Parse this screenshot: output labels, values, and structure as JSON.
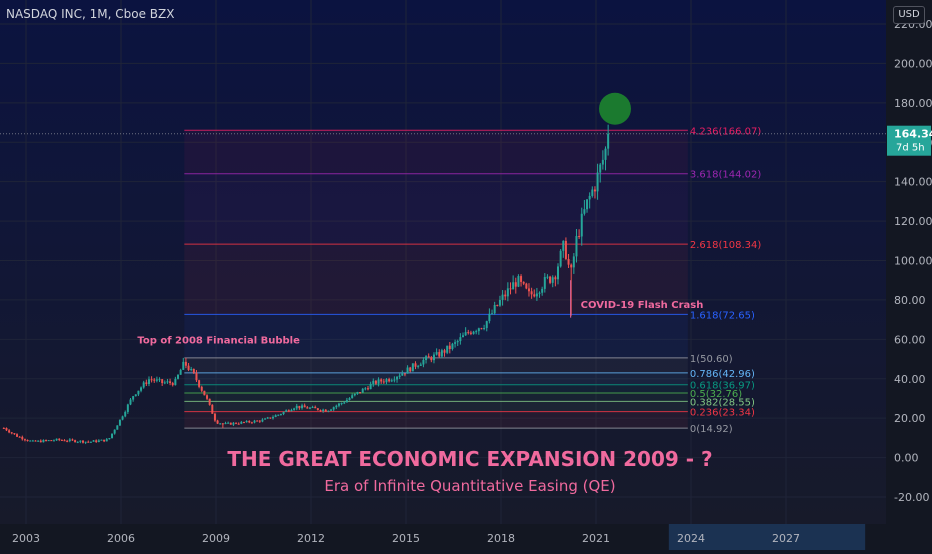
{
  "header": {
    "symbol": "NASDAQ INC, 1M, Cboe BZX",
    "currency": "USD"
  },
  "price_tag": {
    "price": "164.34",
    "countdown": "7d 5h"
  },
  "colors": {
    "background": "#131722",
    "up": "#26a69a",
    "down": "#ef5350",
    "title": "#f06a9e",
    "subtitle": "#f06a9e",
    "marker": "#1b7a2f"
  },
  "chart_data": {
    "type": "candlestick",
    "title": "THE GREAT ECONOMIC EXPANSION 2009 - ?",
    "subtitle": "Era of Infinite Quantitative Easing (QE)",
    "xlabel": "",
    "ylabel": "",
    "ylim": [
      -30,
      240
    ],
    "xlim": [
      2002.3,
      2029.5
    ],
    "x_ticks": [
      "2003",
      "2006",
      "2009",
      "2012",
      "2015",
      "2018",
      "2021",
      "2024",
      "2027"
    ],
    "y_ticks": [
      "-20.00",
      "0.00",
      "20.00",
      "40.00",
      "60.00",
      "80.00",
      "100.00",
      "120.00",
      "140.00",
      "160.00",
      "180.00",
      "200.00",
      "220.00"
    ],
    "last_price": 164.34,
    "price_path": [
      [
        2002.3,
        15
      ],
      [
        2002.7,
        11
      ],
      [
        2003.2,
        8
      ],
      [
        2004.0,
        9
      ],
      [
        2005.0,
        8
      ],
      [
        2005.6,
        9
      ],
      [
        2006.0,
        20
      ],
      [
        2006.4,
        32
      ],
      [
        2006.9,
        40
      ],
      [
        2007.3,
        38
      ],
      [
        2007.7,
        38
      ],
      [
        2007.9,
        45
      ],
      [
        2008.0,
        48
      ],
      [
        2008.3,
        42
      ],
      [
        2008.7,
        30
      ],
      [
        2009.0,
        18
      ],
      [
        2009.3,
        17
      ],
      [
        2010.0,
        18
      ],
      [
        2010.5,
        19
      ],
      [
        2011.0,
        22
      ],
      [
        2011.5,
        26
      ],
      [
        2012.0,
        25
      ],
      [
        2012.5,
        24
      ],
      [
        2013.0,
        28
      ],
      [
        2013.5,
        33
      ],
      [
        2014.0,
        38
      ],
      [
        2014.5,
        40
      ],
      [
        2015.0,
        44
      ],
      [
        2015.5,
        49
      ],
      [
        2016.0,
        52
      ],
      [
        2016.5,
        57
      ],
      [
        2017.0,
        64
      ],
      [
        2017.5,
        68
      ],
      [
        2018.0,
        80
      ],
      [
        2018.5,
        90
      ],
      [
        2018.9,
        82
      ],
      [
        2019.3,
        88
      ],
      [
        2019.7,
        93
      ],
      [
        2020.0,
        108
      ],
      [
        2020.2,
        92
      ],
      [
        2020.4,
        112
      ],
      [
        2020.7,
        128
      ],
      [
        2021.0,
        140
      ],
      [
        2021.2,
        150
      ],
      [
        2021.4,
        162
      ]
    ],
    "fib_levels": [
      {
        "ratio": "0",
        "label": "0(14.92)",
        "value": 14.92,
        "color": "#9598a1"
      },
      {
        "ratio": "0.236",
        "label": "0.236(23.34)",
        "value": 23.34,
        "color": "#f23645"
      },
      {
        "ratio": "0.382",
        "label": "0.382(28.55)",
        "value": 28.55,
        "color": "#81c784"
      },
      {
        "ratio": "0.5",
        "label": "0.5(32.76)",
        "value": 32.76,
        "color": "#4caf50"
      },
      {
        "ratio": "0.618",
        "label": "0.618(36.97)",
        "value": 36.97,
        "color": "#089981"
      },
      {
        "ratio": "0.786",
        "label": "0.786(42.96)",
        "value": 42.96,
        "color": "#64b5f6"
      },
      {
        "ratio": "1",
        "label": "1(50.60)",
        "value": 50.6,
        "color": "#9598a1"
      },
      {
        "ratio": "1.618",
        "label": "1.618(72.65)",
        "value": 72.65,
        "color": "#2962ff"
      },
      {
        "ratio": "2.618",
        "label": "2.618(108.34)",
        "value": 108.34,
        "color": "#f23645"
      },
      {
        "ratio": "3.618",
        "label": "3.618(144.02)",
        "value": 144.02,
        "color": "#9c27b0"
      },
      {
        "ratio": "4.236",
        "label": "4.236(166.07)",
        "value": 166.07,
        "color": "#e91e63"
      }
    ],
    "annotations": [
      {
        "text": "Top of 2008 Financial Bubble",
        "x": 2008.0,
        "y": 58
      },
      {
        "text": "COVID-19 Flash Crash",
        "x": 2019.7,
        "y": 78
      }
    ]
  }
}
